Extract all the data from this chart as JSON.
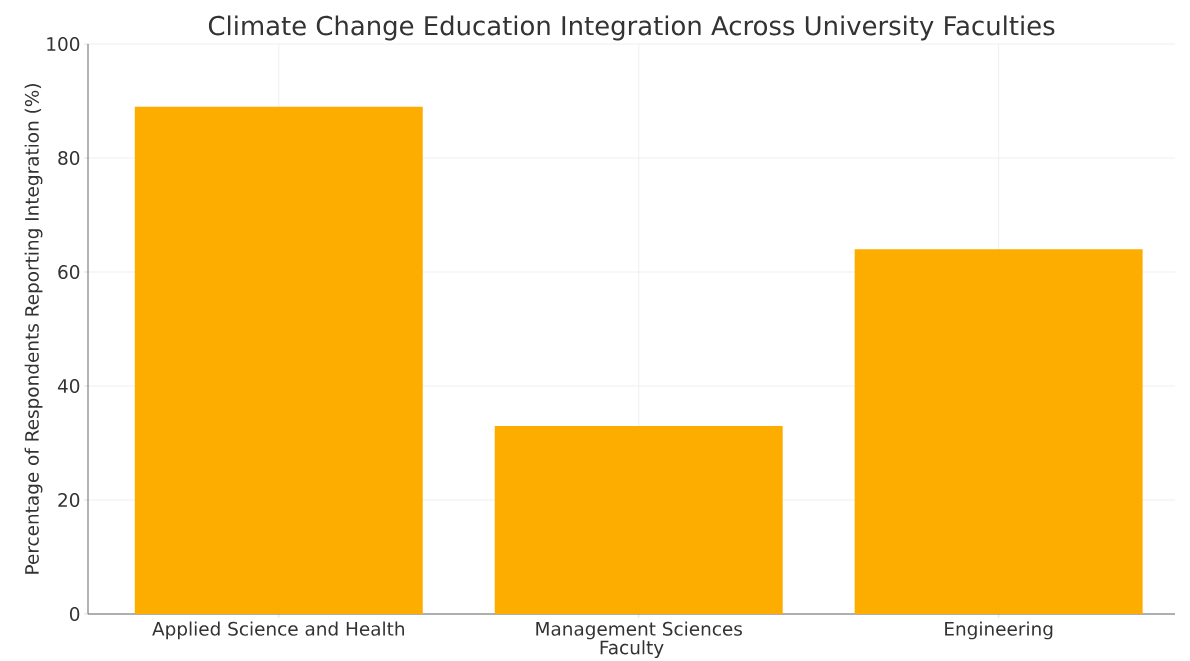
{
  "chart_data": {
    "type": "bar",
    "title": "Climate Change Education Integration Across University Faculties",
    "xlabel": "Faculty",
    "ylabel": "Percentage of Respondents Reporting Integration (%)",
    "categories": [
      "Applied Science and Health",
      "Management Sciences",
      "Engineering"
    ],
    "values": [
      89,
      33,
      64
    ],
    "color": "#fdad00",
    "ylim": [
      0,
      100
    ],
    "yticks": [
      0,
      20,
      40,
      60,
      80,
      100
    ],
    "grid": true
  }
}
